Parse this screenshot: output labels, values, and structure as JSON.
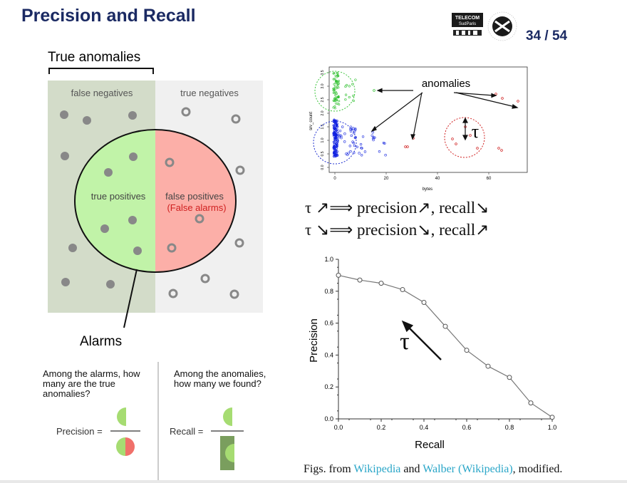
{
  "slide": {
    "title": "Precision and Recall",
    "page_current": "34",
    "page_separator": "/",
    "page_total": "54"
  },
  "logos": {
    "telecom_line1": "TELECOM",
    "telecom_line2": "SudParis",
    "polytechnique_text": "INSTITUT POLYTECHNIQUE DE PARIS"
  },
  "venn": {
    "true_anomalies_label": "True anomalies",
    "false_negatives": "false negatives",
    "true_negatives": "true negatives",
    "true_positives": "true positives",
    "false_positives": "false positives",
    "false_alarms": "(False alarms)",
    "alarms_label": "Alarms",
    "colors": {
      "left_bg": "#d3dcc9",
      "right_bg": "#f0f0f0",
      "tp_fill": "#c1f3a8",
      "fp_fill": "#fcafa8"
    }
  },
  "questions": {
    "precision_question": "Among the alarms, how many are the true anomalies?",
    "recall_question": "Among the anomalies, how many we found?",
    "precision_label": "Precision =",
    "recall_label": "Recall ="
  },
  "math": {
    "line1_left": "τ ↗⟹ precision↗, recall↘",
    "line2_left": "τ ↘⟹ precision↘, recall↗"
  },
  "scatter": {
    "annotation": "anomalies",
    "tau": "τ",
    "xlabel": "bytes",
    "ylabel": "srv_count",
    "x_ticks": [
      "0",
      "20",
      "40",
      "60"
    ],
    "y_ticks": [
      "0.0",
      "0.5",
      "1.0",
      "1.5",
      "2.0",
      "2.5",
      "3.0",
      "3.5"
    ]
  },
  "chart_data": {
    "type": "line",
    "title": "",
    "xlabel": "Recall",
    "ylabel": "Precision",
    "xlim": [
      0,
      1
    ],
    "ylim": [
      0,
      1
    ],
    "x_ticks": [
      "0.0",
      "0.2",
      "0.4",
      "0.6",
      "0.8",
      "1.0"
    ],
    "y_ticks": [
      "0.0",
      "0.2",
      "0.4",
      "0.6",
      "0.8",
      "1.0"
    ],
    "annotation": "τ",
    "x": [
      0.0,
      0.1,
      0.2,
      0.3,
      0.4,
      0.5,
      0.6,
      0.7,
      0.8,
      0.9,
      1.0
    ],
    "y": [
      0.9,
      0.87,
      0.85,
      0.81,
      0.73,
      0.58,
      0.43,
      0.33,
      0.26,
      0.1,
      0.01
    ]
  },
  "footer": {
    "prefix": "Figs. from ",
    "link1": "Wikipedia",
    "middle": " and ",
    "link2": "Walber (Wikipedia)",
    "suffix": ", modified."
  }
}
